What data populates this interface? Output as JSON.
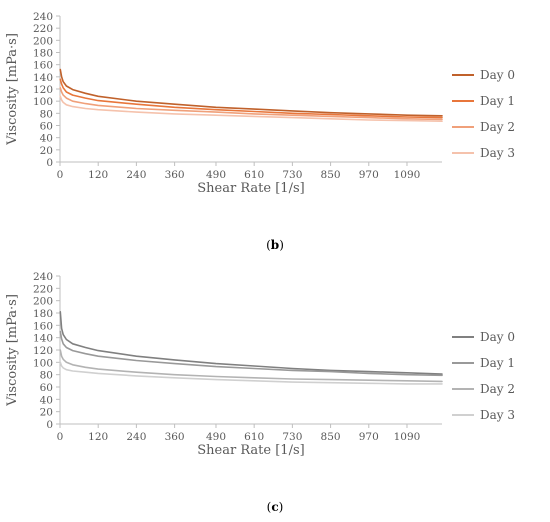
{
  "chart_data": [
    {
      "type": "line",
      "caption": {
        "open": "(",
        "letter": "b",
        "close": ")"
      },
      "xlabel": "Shear Rate [1/s]",
      "ylabel": "Viscosity [mPa·s]",
      "xlim": [
        0,
        1200
      ],
      "ylim": [
        0,
        240
      ],
      "x_ticks": [
        0,
        120,
        240,
        360,
        490,
        610,
        730,
        850,
        970,
        1090
      ],
      "y_ticks": [
        0,
        20,
        40,
        60,
        80,
        100,
        120,
        140,
        160,
        180,
        200,
        220,
        240
      ],
      "grid": false,
      "legend": "right",
      "x": [
        1,
        5,
        10,
        20,
        40,
        80,
        120,
        240,
        360,
        490,
        610,
        730,
        850,
        970,
        1090,
        1200
      ],
      "series": [
        {
          "name": "Day 0",
          "color": "#C0612B",
          "values": [
            152,
            140,
            132,
            125,
            119,
            113,
            108,
            100,
            95,
            90,
            87,
            84,
            81,
            79,
            77,
            76
          ]
        },
        {
          "name": "Day 1",
          "color": "#E8763B",
          "values": [
            136,
            128,
            122,
            115,
            110,
            105,
            101,
            95,
            90,
            86,
            83,
            80,
            78,
            76,
            74,
            73
          ]
        },
        {
          "name": "Day 2",
          "color": "#F0A07A",
          "values": [
            122,
            115,
            110,
            105,
            100,
            96,
            93,
            88,
            85,
            82,
            79,
            77,
            75,
            73,
            71,
            70
          ]
        },
        {
          "name": "Day 3",
          "color": "#F5C2AC",
          "values": [
            108,
            102,
            98,
            94,
            91,
            88,
            86,
            82,
            79,
            77,
            75,
            73,
            71,
            69,
            68,
            67
          ]
        }
      ]
    },
    {
      "type": "line",
      "caption": {
        "open": "(",
        "letter": "c",
        "close": ")"
      },
      "xlabel": "Shear Rate [1/s]",
      "ylabel": "Viscosity [mPa·s]",
      "xlim": [
        0,
        1200
      ],
      "ylim": [
        0,
        240
      ],
      "x_ticks": [
        0,
        120,
        240,
        360,
        490,
        610,
        730,
        850,
        970,
        1090
      ],
      "y_ticks": [
        0,
        20,
        40,
        60,
        80,
        100,
        120,
        140,
        160,
        180,
        200,
        220,
        240
      ],
      "grid": false,
      "legend": "right",
      "x": [
        1,
        5,
        10,
        20,
        40,
        80,
        120,
        240,
        360,
        490,
        610,
        730,
        850,
        970,
        1090,
        1200
      ],
      "series": [
        {
          "name": "Day 0",
          "color": "#808080",
          "values": [
            182,
            155,
            145,
            137,
            130,
            124,
            119,
            110,
            104,
            98,
            94,
            90,
            87,
            85,
            83,
            81
          ]
        },
        {
          "name": "Day 1",
          "color": "#999999",
          "values": [
            150,
            138,
            130,
            124,
            119,
            114,
            110,
            103,
            98,
            93,
            90,
            87,
            85,
            82,
            80,
            79
          ]
        },
        {
          "name": "Day 2",
          "color": "#B3B3B3",
          "values": [
            120,
            110,
            105,
            100,
            96,
            92,
            89,
            84,
            80,
            77,
            75,
            73,
            72,
            71,
            70,
            69
          ]
        },
        {
          "name": "Day 3",
          "color": "#D0D0D0",
          "values": [
            100,
            94,
            91,
            88,
            86,
            84,
            82,
            78,
            75,
            72,
            70,
            68,
            67,
            66,
            65,
            65
          ]
        }
      ]
    }
  ]
}
